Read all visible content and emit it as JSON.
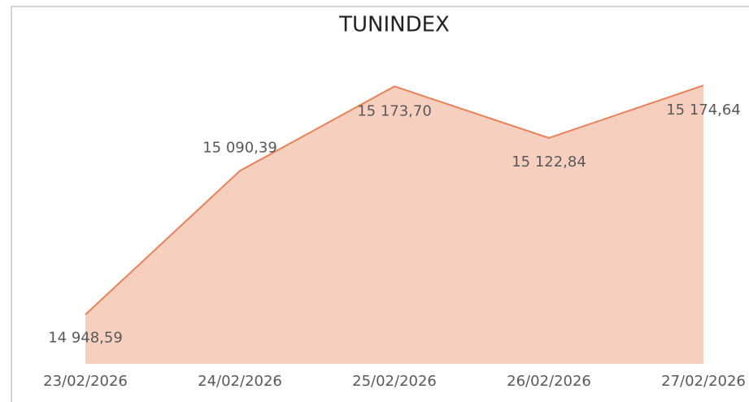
{
  "chart_data": {
    "type": "area",
    "title": "TUNINDEX",
    "categories": [
      "23/02/2026",
      "24/02/2026",
      "25/02/2026",
      "26/02/2026",
      "27/02/2026"
    ],
    "values": [
      14948.59,
      15090.39,
      15173.7,
      15122.84,
      15174.64
    ],
    "value_labels": [
      "14 948,59",
      "15 090,39",
      "15 173,70",
      "15 122,84",
      "15 174,64"
    ],
    "color": "#e8825a",
    "fill": "#f6cfbf",
    "ylim": [
      14900,
      15200
    ]
  }
}
